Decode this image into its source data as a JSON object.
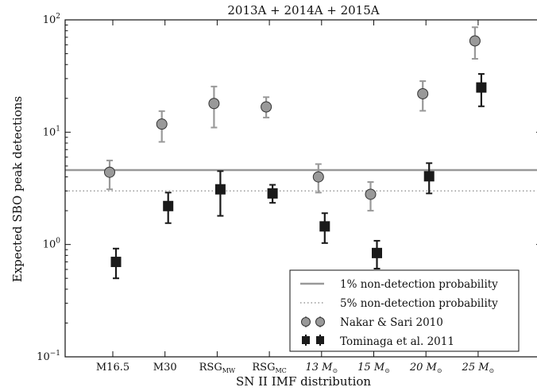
{
  "chart_data": {
    "type": "scatter",
    "title": "2013A + 2014A + 2015A",
    "xlabel": "SN II IMF distribution",
    "ylabel": "Expected SBO peak detections",
    "yscale": "log",
    "ylim": [
      0.1,
      100
    ],
    "ytick_labels": [
      {
        "base": "10",
        "exp": "−1",
        "value": 0.1
      },
      {
        "base": "10",
        "exp": "0",
        "value": 1
      },
      {
        "base": "10",
        "exp": "1",
        "value": 10
      },
      {
        "base": "10",
        "exp": "2",
        "value": 100
      }
    ],
    "categories": [
      {
        "main": "M16.5",
        "sub": ""
      },
      {
        "main": "M30",
        "sub": ""
      },
      {
        "main": "RSG",
        "sub": "MW"
      },
      {
        "main": "RSG",
        "sub": "MC"
      },
      {
        "main": "13 M",
        "sub": "⊙"
      },
      {
        "main": "15 M",
        "sub": "⊙"
      },
      {
        "main": "20 M",
        "sub": "⊙"
      },
      {
        "main": "25 M",
        "sub": "⊙"
      }
    ],
    "series": [
      {
        "name": "Nakar & Sari 2010",
        "marker": "circle",
        "color": "#999999",
        "points": [
          {
            "y": 4.4,
            "ylo": 3.1,
            "yhi": 5.6
          },
          {
            "y": 11.8,
            "ylo": 8.2,
            "yhi": 15.4
          },
          {
            "y": 18.0,
            "ylo": 11.0,
            "yhi": 25.5
          },
          {
            "y": 16.8,
            "ylo": 13.5,
            "yhi": 20.5
          },
          {
            "y": 4.0,
            "ylo": 2.9,
            "yhi": 5.2
          },
          {
            "y": 2.8,
            "ylo": 2.0,
            "yhi": 3.6
          },
          {
            "y": 22.0,
            "ylo": 15.5,
            "yhi": 28.5
          },
          {
            "y": 65.0,
            "ylo": 45.0,
            "yhi": 86.0
          }
        ]
      },
      {
        "name": "Tominaga et al. 2011",
        "marker": "square",
        "color": "#1a1a1a",
        "points": [
          {
            "y": 0.7,
            "ylo": 0.5,
            "yhi": 0.92
          },
          {
            "y": 2.2,
            "ylo": 1.55,
            "yhi": 2.9
          },
          {
            "y": 3.1,
            "ylo": 1.8,
            "yhi": 4.5
          },
          {
            "y": 2.85,
            "ylo": 2.35,
            "yhi": 3.4
          },
          {
            "y": 1.45,
            "ylo": 1.03,
            "yhi": 1.9
          },
          {
            "y": 0.84,
            "ylo": 0.61,
            "yhi": 1.08
          },
          {
            "y": 4.05,
            "ylo": 2.85,
            "yhi": 5.3
          },
          {
            "y": 25.0,
            "ylo": 17.0,
            "yhi": 33.0
          }
        ]
      }
    ],
    "reference_lines": [
      {
        "name": "1% non-detection probability",
        "y": 4.6,
        "style": "solid",
        "color": "#999999"
      },
      {
        "name": "5% non-detection probability",
        "y": 3.0,
        "style": "dotted",
        "color": "#999999"
      }
    ],
    "legend": {
      "placement": "lower-right",
      "entries": [
        "1% non-detection probability",
        "5% non-detection probability",
        "Nakar & Sari 2010",
        "Tominaga et al. 2011"
      ]
    },
    "grid": false
  }
}
